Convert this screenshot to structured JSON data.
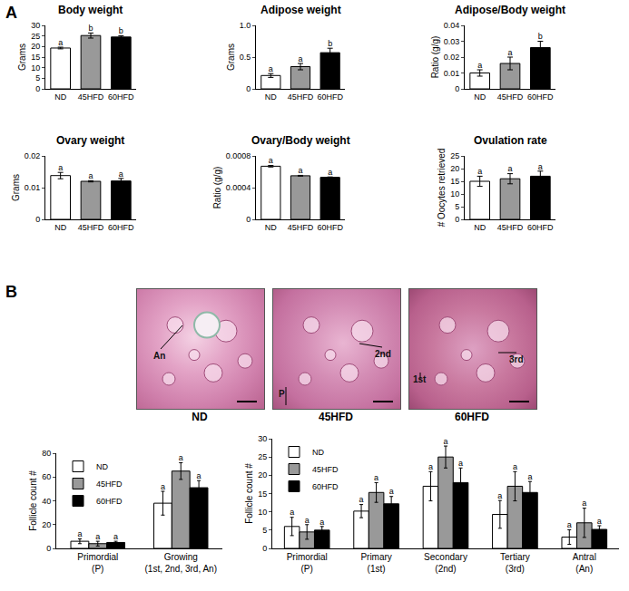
{
  "panel_labels": [
    "A",
    "B"
  ],
  "micrographs": [
    {
      "caption": "ND",
      "labels": [
        "An"
      ]
    },
    {
      "caption": "45HFD",
      "labels": [
        "P",
        "2nd"
      ]
    },
    {
      "caption": "60HFD",
      "labels": [
        "1st",
        "3rd"
      ]
    }
  ],
  "chart_data": [
    {
      "type": "bar",
      "title": "Body weight",
      "ylabel": "Grams",
      "categories": [
        "ND",
        "45HFD",
        "60HFD"
      ],
      "values": [
        19.3,
        25.2,
        24.5
      ],
      "error": [
        0.4,
        1.2,
        0.6
      ],
      "letters": [
        "a",
        "b",
        "b"
      ],
      "colors": [
        "#ffffff",
        "#999999",
        "#000000"
      ],
      "ylim": [
        0,
        30
      ],
      "yticks": [
        0,
        5,
        10,
        15,
        20,
        25,
        30
      ]
    },
    {
      "type": "bar",
      "title": "Adipose weight",
      "ylabel": "Grams",
      "categories": [
        "ND",
        "45HFD",
        "60HFD"
      ],
      "values": [
        0.21,
        0.35,
        0.57
      ],
      "error": [
        0.03,
        0.05,
        0.07
      ],
      "letters": [
        "a",
        "a",
        "b"
      ],
      "colors": [
        "#ffffff",
        "#999999",
        "#000000"
      ],
      "ylim": [
        0,
        1
      ],
      "yticks": [
        0,
        0.5,
        {
          "value": 1,
          "label": "1.0"
        }
      ]
    },
    {
      "type": "bar",
      "title": "Adipose/Body weight",
      "ylabel": "Ratio (g/g)",
      "categories": [
        "ND",
        "45HFD",
        "60HFD"
      ],
      "values": [
        0.01,
        0.016,
        0.026
      ],
      "error": [
        0.002,
        0.004,
        0.004
      ],
      "letters": [
        "a",
        "a",
        "b"
      ],
      "colors": [
        "#ffffff",
        "#999999",
        "#000000"
      ],
      "ylim": [
        0,
        0.04
      ],
      "yticks": [
        0,
        0.01,
        0.02,
        0.03,
        0.04
      ]
    },
    {
      "type": "bar",
      "title": "Ovary weight",
      "ylabel": "Grams",
      "categories": [
        "ND",
        "45HFD",
        "60HFD"
      ],
      "values": [
        0.0138,
        0.012,
        0.0121
      ],
      "error": [
        0.001,
        0.0002,
        0.0008
      ],
      "letters": [
        "a",
        "a",
        "a"
      ],
      "colors": [
        "#ffffff",
        "#999999",
        "#000000"
      ],
      "ylim": [
        0,
        0.02
      ],
      "yticks": [
        0,
        0.01,
        0.02
      ]
    },
    {
      "type": "bar",
      "title": "Ovary/Body weight",
      "ylabel": "Ratio (g/g)",
      "categories": [
        "ND",
        "45HFD",
        "60HFD"
      ],
      "values": [
        0.00067,
        0.00055,
        0.00053
      ],
      "error": [
        1e-05,
        5e-06,
        5e-06
      ],
      "letters": [
        "a",
        "a",
        "a"
      ],
      "colors": [
        "#ffffff",
        "#999999",
        "#000000"
      ],
      "ylim": [
        0,
        0.0008
      ],
      "yticks": [
        0,
        0.0004,
        0.0008
      ]
    },
    {
      "type": "bar",
      "title": "Ovulation rate",
      "ylabel": "# Oocytes retrieved",
      "categories": [
        "ND",
        "45HFD",
        "60HFD"
      ],
      "values": [
        15,
        16,
        17
      ],
      "error": [
        2,
        2,
        2
      ],
      "letters": [
        "a",
        "a",
        "a"
      ],
      "colors": [
        "#ffffff",
        "#999999",
        "#000000"
      ],
      "ylim": [
        0,
        25
      ],
      "yticks": [
        0,
        5,
        10,
        15,
        20,
        25
      ]
    },
    {
      "type": "bar",
      "ylabel": "Follicle count #",
      "legend": "upper left",
      "categories": [
        "Primordial\n(P)",
        "Growing\n(1st, 2nd, 3rd, An)"
      ],
      "series": [
        {
          "name": "ND",
          "color": "#ffffff",
          "values": [
            6,
            38
          ],
          "error": [
            2,
            10
          ],
          "letters": [
            "a",
            "a"
          ]
        },
        {
          "name": "45HFD",
          "color": "#999999",
          "values": [
            4,
            65
          ],
          "error": [
            2,
            7
          ],
          "letters": [
            "a",
            "a"
          ]
        },
        {
          "name": "60HFD",
          "color": "#000000",
          "values": [
            5,
            51
          ],
          "error": [
            1,
            6
          ],
          "letters": [
            "a",
            "a"
          ]
        }
      ],
      "ylim": [
        0,
        80
      ],
      "yticks": [
        0,
        20,
        40,
        60,
        80
      ]
    },
    {
      "type": "bar",
      "ylabel": "Follicle count #",
      "legend": "upper left",
      "categories": [
        "Primordial\n(P)",
        "Primary\n(1st)",
        "Secondary\n(2nd)",
        "Tertiary\n(3rd)",
        "Antral\n(An)"
      ],
      "series": [
        {
          "name": "ND",
          "color": "#ffffff",
          "values": [
            6,
            10.2,
            17,
            9.3,
            3.1
          ],
          "error": [
            2.5,
            1.8,
            4,
            3.8,
            2
          ],
          "letters": [
            "a",
            "a",
            "a",
            "a",
            "a"
          ]
        },
        {
          "name": "45HFD",
          "color": "#999999",
          "values": [
            4.5,
            15.3,
            25,
            17,
            7
          ],
          "error": [
            2,
            2.7,
            3,
            4,
            4
          ],
          "letters": [
            "a",
            "a",
            "a",
            "a",
            "a"
          ]
        },
        {
          "name": "60HFD",
          "color": "#000000",
          "values": [
            5,
            12.2,
            18,
            15.3,
            5.2
          ],
          "error": [
            1,
            2,
            4,
            3,
            1
          ],
          "letters": [
            "a",
            "a",
            "a",
            "a",
            "a"
          ]
        }
      ],
      "ylim": [
        0,
        30
      ],
      "yticks": [
        0,
        5,
        10,
        15,
        20,
        25,
        30
      ]
    }
  ]
}
